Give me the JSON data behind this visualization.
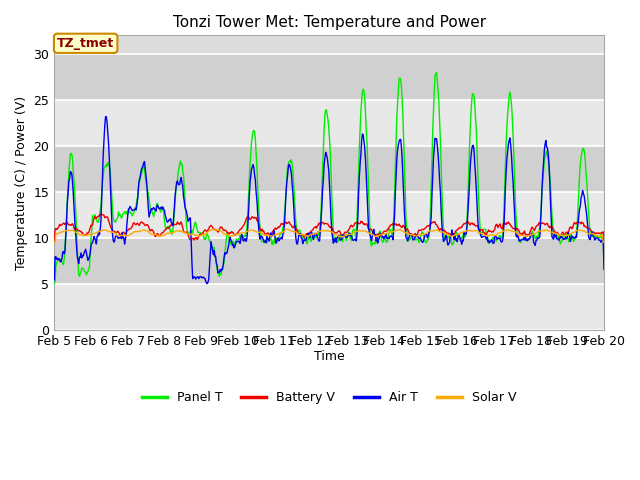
{
  "title": "Tonzi Tower Met: Temperature and Power",
  "xlabel": "Time",
  "ylabel": "Temperature (C) / Power (V)",
  "legend_label": "TZ_tmet",
  "series_labels": [
    "Panel T",
    "Battery V",
    "Air T",
    "Solar V"
  ],
  "series_colors": [
    "#00ee00",
    "#ee0000",
    "#0000ee",
    "#ffaa00"
  ],
  "ylim": [
    0,
    32
  ],
  "yticks": [
    0,
    5,
    10,
    15,
    20,
    25,
    30
  ],
  "x_labels": [
    "Feb 5",
    "Feb 6",
    "Feb 7",
    "Feb 8",
    "Feb 9",
    "Feb 10",
    "Feb 11",
    "Feb 12",
    "Feb 13",
    "Feb 14",
    "Feb 15",
    "Feb 16",
    "Feb 17",
    "Feb 18",
    "Feb 19",
    "Feb 20"
  ],
  "plot_bg_color": "#dcdcdc",
  "linewidth": 1.0,
  "figsize": [
    6.4,
    4.8
  ],
  "dpi": 100
}
